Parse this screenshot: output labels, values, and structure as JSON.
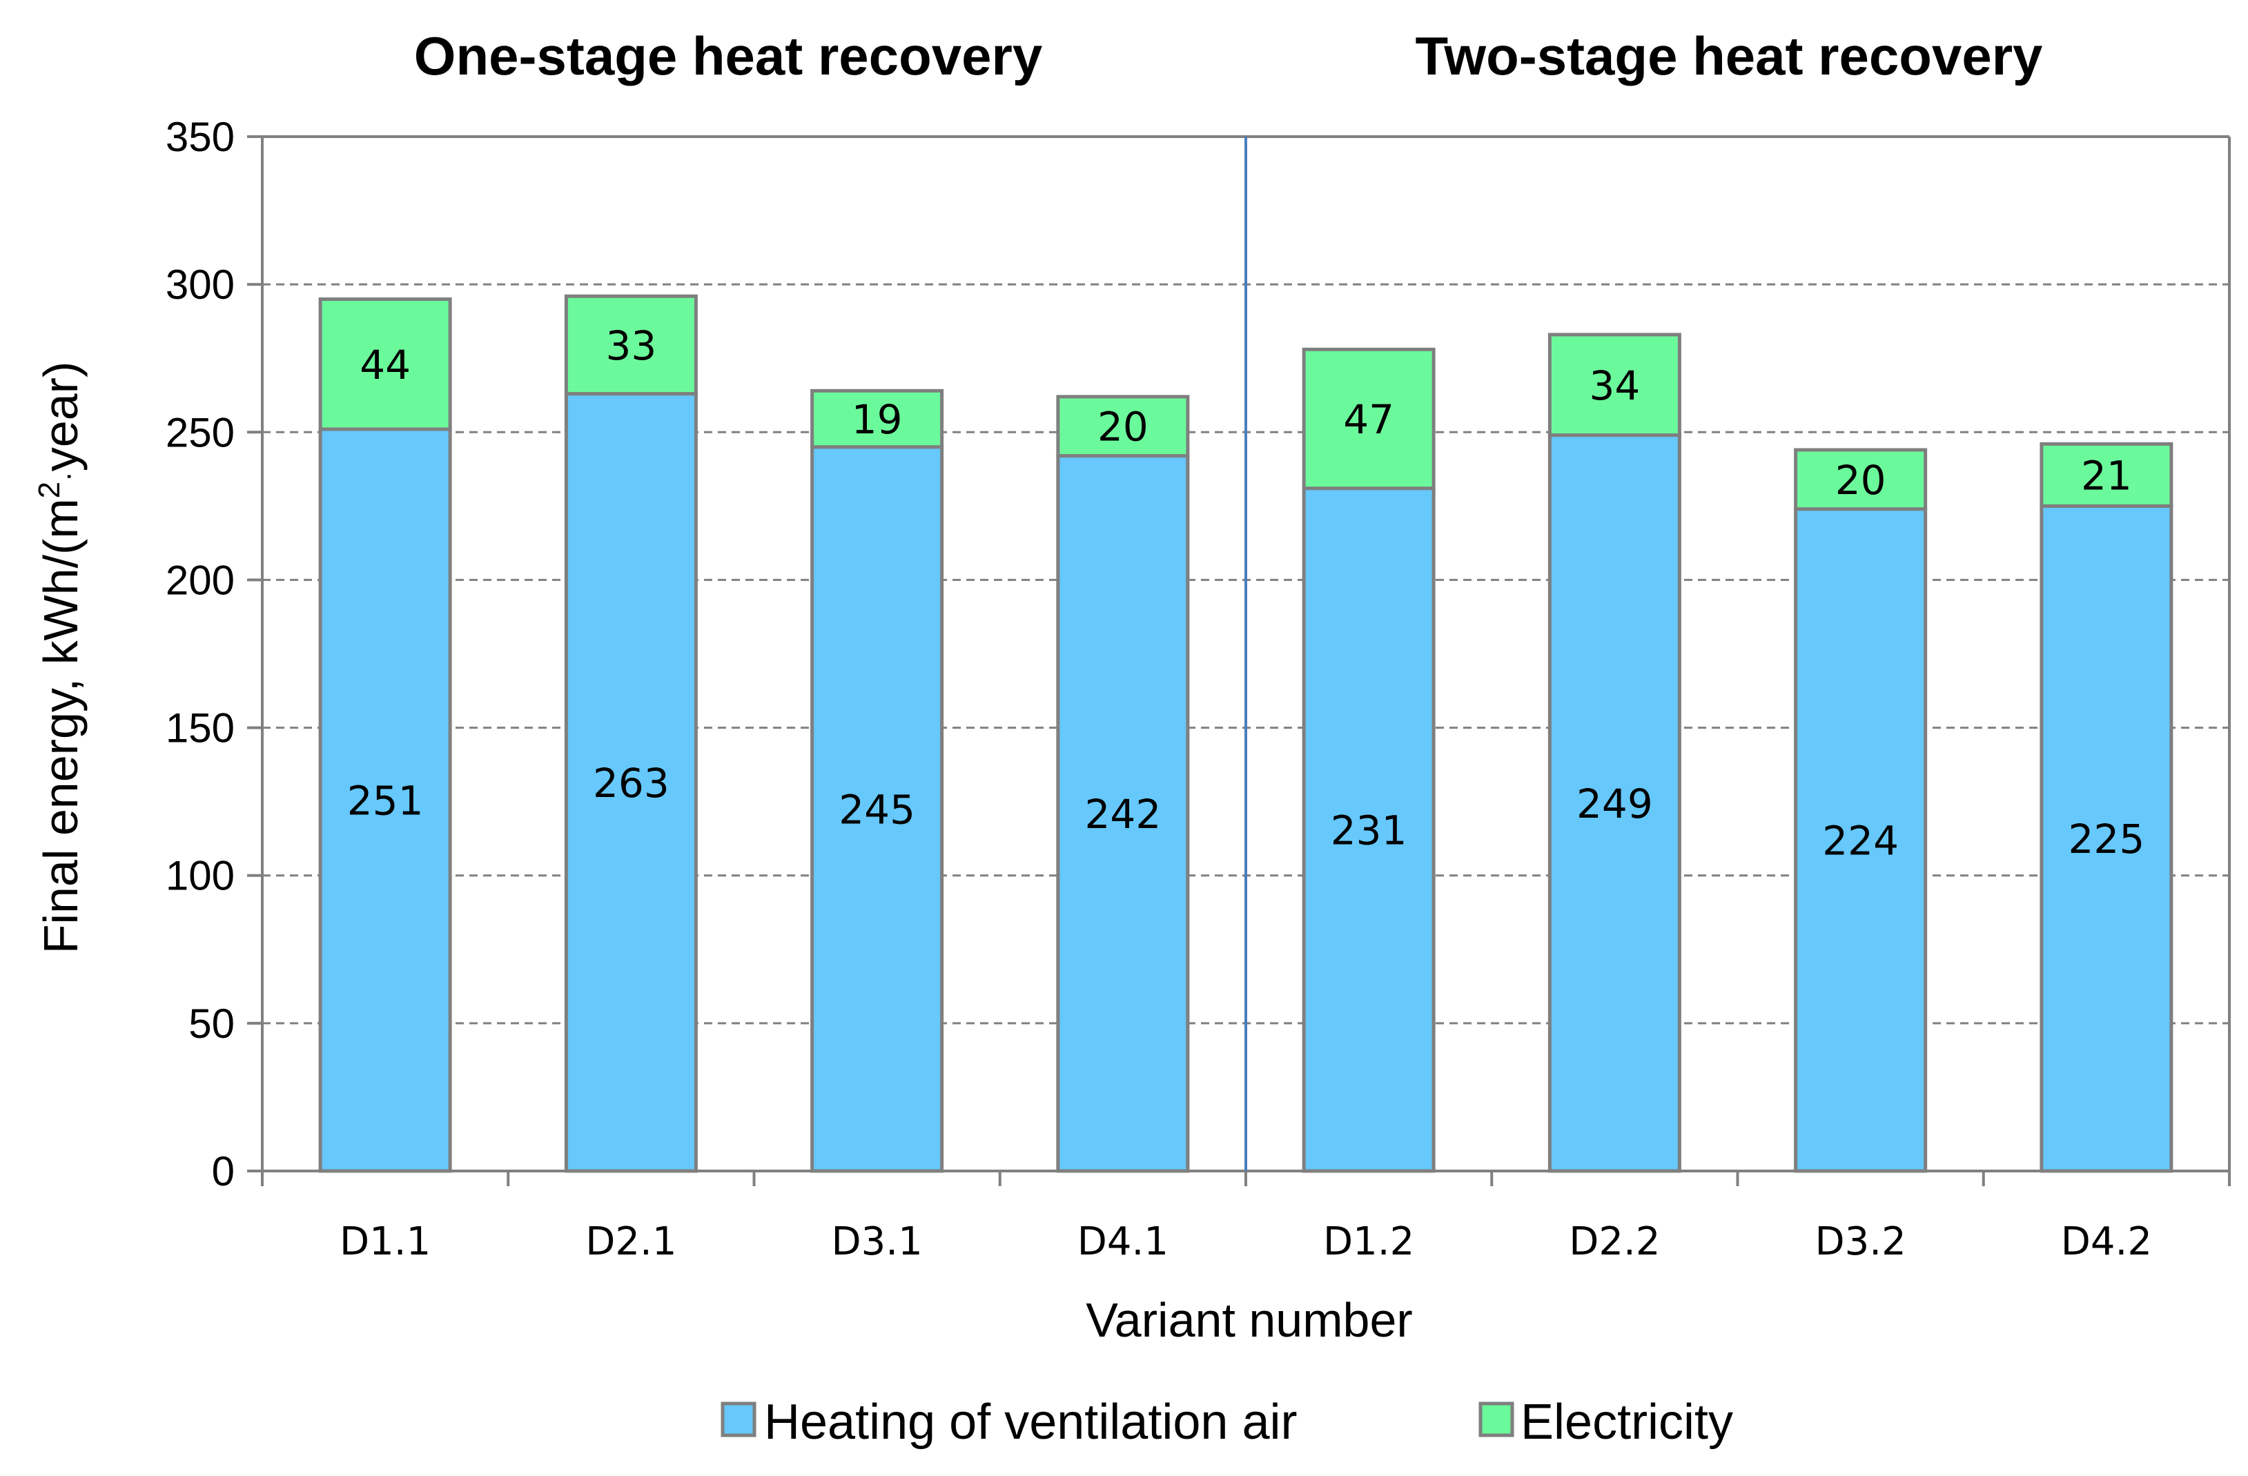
{
  "chart_data": {
    "type": "bar",
    "stacked": true,
    "categories": [
      "D1.1",
      "D2.1",
      "D3.1",
      "D4.1",
      "D1.2",
      "D2.2",
      "D3.2",
      "D4.2"
    ],
    "series": [
      {
        "name": "Heating of ventilation air",
        "color": "#66c8fb",
        "values": [
          251,
          263,
          245,
          242,
          231,
          249,
          224,
          225
        ]
      },
      {
        "name": "Electricity",
        "color": "#6bfa9b",
        "values": [
          44,
          33,
          19,
          20,
          47,
          34,
          20,
          21
        ]
      }
    ],
    "groups": [
      {
        "title": "One-stage heat recovery",
        "categories": [
          "D1.1",
          "D2.1",
          "D3.1",
          "D4.1"
        ]
      },
      {
        "title": "Two-stage heat recovery",
        "categories": [
          "D1.2",
          "D2.2",
          "D3.2",
          "D4.2"
        ]
      }
    ],
    "xlabel": "Variant number",
    "ylabel": {
      "prefix": "Final energy,  kWh/(m",
      "superscript": "2",
      "dot": "·",
      "suffix": "year)"
    },
    "ylim": [
      0,
      350
    ],
    "yticks": [
      0,
      50,
      100,
      150,
      200,
      250,
      300,
      350
    ],
    "grid": true,
    "legend_position": "bottom"
  }
}
